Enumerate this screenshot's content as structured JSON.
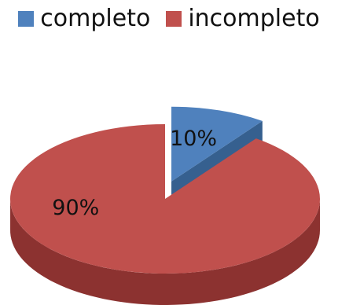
{
  "chart_data": {
    "type": "pie",
    "title": "",
    "legend_position": "top",
    "slices": [
      {
        "name": "completo",
        "value": 10,
        "label": "10%",
        "color": "#4F81BD",
        "side_color": "#36608F",
        "exploded": true
      },
      {
        "name": "incompleto",
        "value": 90,
        "label": "90%",
        "color": "#C0504D",
        "side_color": "#8C3230",
        "exploded": false
      }
    ]
  }
}
